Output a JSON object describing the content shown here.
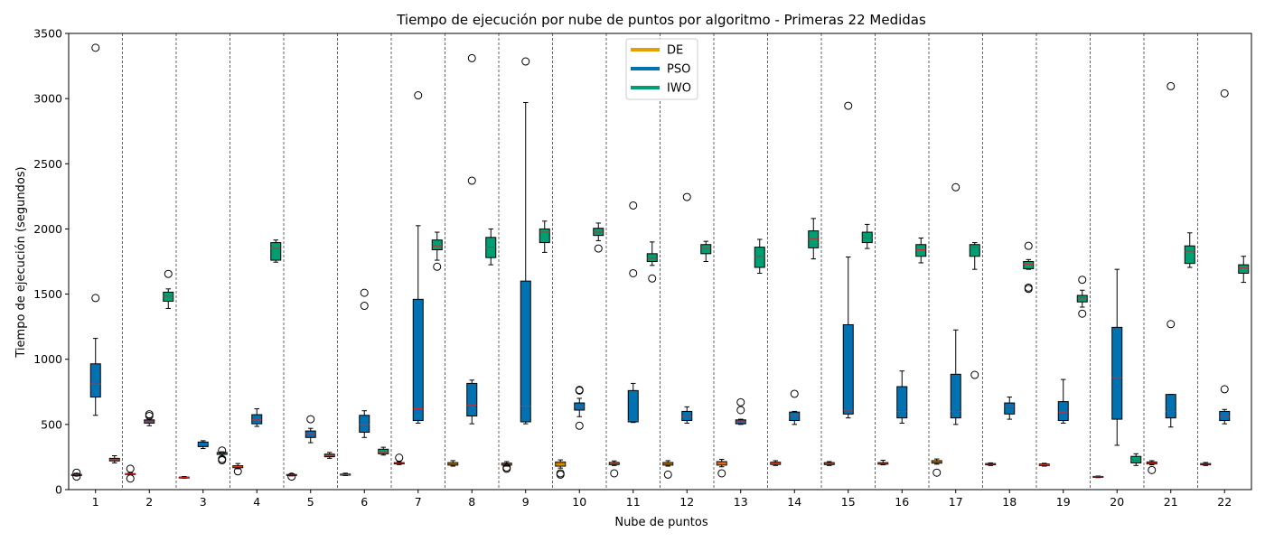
{
  "chart_data": {
    "type": "box",
    "title": "Tiempo de ejecución por nube de puntos por algoritmo - Primeras 22 Medidas",
    "xlabel": "Nube de puntos",
    "ylabel": "Tiempo de ejecución (segundos)",
    "ylim": [
      0,
      3500
    ],
    "yticks": [
      0,
      500,
      1000,
      1500,
      2000,
      2500,
      3000,
      3500
    ],
    "categories": [
      "1",
      "2",
      "3",
      "4",
      "5",
      "6",
      "7",
      "8",
      "9",
      "10",
      "11",
      "12",
      "13",
      "14",
      "15",
      "16",
      "17",
      "18",
      "19",
      "20",
      "21",
      "22"
    ],
    "legend_position": "top-center",
    "median_color": "#d62728",
    "separators": "dashed",
    "series": [
      {
        "name": "DE",
        "color": "#E69F00",
        "boxes": [
          {
            "whislo": 105,
            "q1": 108,
            "med": 113,
            "q3": 117,
            "whishi": 125,
            "fliers": [
              100,
              130
            ]
          },
          {
            "whislo": 115,
            "q1": 117,
            "med": 120,
            "q3": 123,
            "whishi": 127,
            "fliers": [
              160,
              85
            ]
          },
          {
            "whislo": 88,
            "q1": 90,
            "med": 93,
            "q3": 96,
            "whishi": 100,
            "fliers": []
          },
          {
            "whislo": 160,
            "q1": 168,
            "med": 175,
            "q3": 183,
            "whishi": 200,
            "fliers": [
              140
            ]
          },
          {
            "whislo": 105,
            "q1": 108,
            "med": 112,
            "q3": 116,
            "whishi": 120,
            "fliers": [
              100
            ]
          },
          {
            "whislo": 108,
            "q1": 111,
            "med": 115,
            "q3": 119,
            "whishi": 126,
            "fliers": []
          },
          {
            "whislo": 192,
            "q1": 197,
            "med": 202,
            "q3": 207,
            "whishi": 215,
            "fliers": [
              245
            ]
          },
          {
            "whislo": 180,
            "q1": 188,
            "med": 197,
            "q3": 207,
            "whishi": 222,
            "fliers": []
          },
          {
            "whislo": 180,
            "q1": 188,
            "med": 195,
            "q3": 203,
            "whishi": 215,
            "fliers": [
              160,
              170
            ]
          },
          {
            "whislo": 165,
            "q1": 180,
            "med": 198,
            "q3": 212,
            "whishi": 228,
            "fliers": [
              115,
              125
            ]
          },
          {
            "whislo": 185,
            "q1": 192,
            "med": 200,
            "q3": 208,
            "whishi": 220,
            "fliers": [
              125
            ]
          },
          {
            "whislo": 180,
            "q1": 188,
            "med": 198,
            "q3": 208,
            "whishi": 222,
            "fliers": [
              115
            ]
          },
          {
            "whislo": 175,
            "q1": 188,
            "med": 202,
            "q3": 215,
            "whishi": 232,
            "fliers": [
              125
            ]
          },
          {
            "whislo": 185,
            "q1": 193,
            "med": 202,
            "q3": 210,
            "whishi": 222,
            "fliers": []
          },
          {
            "whislo": 185,
            "q1": 192,
            "med": 200,
            "q3": 207,
            "whishi": 215,
            "fliers": []
          },
          {
            "whislo": 190,
            "q1": 195,
            "med": 200,
            "q3": 207,
            "whishi": 225,
            "fliers": []
          },
          {
            "whislo": 195,
            "q1": 203,
            "med": 212,
            "q3": 222,
            "whishi": 235,
            "fliers": [
              130
            ]
          },
          {
            "whislo": 185,
            "q1": 190,
            "med": 195,
            "q3": 200,
            "whishi": 205,
            "fliers": []
          },
          {
            "whislo": 180,
            "q1": 185,
            "med": 190,
            "q3": 196,
            "whishi": 202,
            "fliers": []
          },
          {
            "whislo": 92,
            "q1": 95,
            "med": 98,
            "q3": 101,
            "whishi": 104,
            "fliers": []
          },
          {
            "whislo": 190,
            "q1": 197,
            "med": 205,
            "q3": 212,
            "whishi": 222,
            "fliers": [
              150
            ]
          },
          {
            "whislo": 185,
            "q1": 190,
            "med": 195,
            "q3": 200,
            "whishi": 208,
            "fliers": []
          }
        ]
      },
      {
        "name": "PSO",
        "color": "#0072B2",
        "boxes": [
          {
            "whislo": 570,
            "q1": 710,
            "med": 810,
            "q3": 965,
            "whishi": 1160,
            "fliers": [
              1470,
              3390
            ]
          },
          {
            "whislo": 490,
            "q1": 510,
            "med": 520,
            "q3": 535,
            "whishi": 548,
            "fliers": [
              565,
              578
            ]
          },
          {
            "whislo": 315,
            "q1": 330,
            "med": 350,
            "q3": 365,
            "whishi": 375,
            "fliers": []
          },
          {
            "whislo": 485,
            "q1": 505,
            "med": 535,
            "q3": 575,
            "whishi": 620,
            "fliers": []
          },
          {
            "whislo": 360,
            "q1": 400,
            "med": 430,
            "q3": 450,
            "whishi": 470,
            "fliers": [
              540
            ]
          },
          {
            "whislo": 400,
            "q1": 440,
            "med": 500,
            "q3": 570,
            "whishi": 605,
            "fliers": [
              1410,
              1510
            ]
          },
          {
            "whislo": 510,
            "q1": 530,
            "med": 620,
            "q3": 1460,
            "whishi": 2025,
            "fliers": [
              3025
            ]
          },
          {
            "whislo": 505,
            "q1": 565,
            "med": 650,
            "q3": 815,
            "whishi": 840,
            "fliers": [
              2370,
              3310
            ]
          },
          {
            "whislo": 505,
            "q1": 520,
            "med": 640,
            "q3": 1600,
            "whishi": 2970,
            "fliers": [
              3285
            ]
          },
          {
            "whislo": 560,
            "q1": 610,
            "med": 640,
            "q3": 665,
            "whishi": 700,
            "fliers": [
              490,
              760,
              765
            ]
          },
          {
            "whislo": 515,
            "q1": 520,
            "med": 530,
            "q3": 760,
            "whishi": 815,
            "fliers": [
              1660,
              2180
            ]
          },
          {
            "whislo": 510,
            "q1": 530,
            "med": 560,
            "q3": 600,
            "whishi": 635,
            "fliers": [
              2245
            ]
          },
          {
            "whislo": 500,
            "q1": 505,
            "med": 520,
            "q3": 535,
            "whishi": 540,
            "fliers": [
              610,
              670
            ]
          },
          {
            "whislo": 500,
            "q1": 530,
            "med": 570,
            "q3": 595,
            "whishi": 600,
            "fliers": [
              735
            ]
          },
          {
            "whislo": 550,
            "q1": 580,
            "med": 610,
            "q3": 1265,
            "whishi": 1785,
            "fliers": [
              2945
            ]
          },
          {
            "whislo": 510,
            "q1": 550,
            "med": 600,
            "q3": 790,
            "whishi": 910,
            "fliers": []
          },
          {
            "whislo": 500,
            "q1": 550,
            "med": 600,
            "q3": 885,
            "whishi": 1225,
            "fliers": [
              2320
            ]
          },
          {
            "whislo": 540,
            "q1": 580,
            "med": 640,
            "q3": 665,
            "whishi": 710,
            "fliers": []
          },
          {
            "whislo": 510,
            "q1": 530,
            "med": 595,
            "q3": 675,
            "whishi": 845,
            "fliers": []
          },
          {
            "whislo": 340,
            "q1": 540,
            "med": 860,
            "q3": 1245,
            "whishi": 1690,
            "fliers": []
          },
          {
            "whislo": 480,
            "q1": 550,
            "med": 600,
            "q3": 730,
            "whishi": 730,
            "fliers": [
              1270,
              3095
            ]
          },
          {
            "whislo": 505,
            "q1": 530,
            "med": 560,
            "q3": 600,
            "whishi": 615,
            "fliers": [
              770,
              3040
            ]
          }
        ]
      },
      {
        "name": "IWO",
        "color": "#009E73",
        "boxes": [
          {
            "whislo": 205,
            "q1": 220,
            "med": 230,
            "q3": 240,
            "whishi": 260,
            "fliers": []
          },
          {
            "whislo": 1390,
            "q1": 1445,
            "med": 1485,
            "q3": 1515,
            "whishi": 1540,
            "fliers": [
              1655
            ]
          },
          {
            "whislo": 255,
            "q1": 270,
            "med": 280,
            "q3": 285,
            "whishi": 290,
            "fliers": [
              225,
              235,
              300
            ]
          },
          {
            "whislo": 1745,
            "q1": 1760,
            "med": 1850,
            "q3": 1895,
            "whishi": 1915,
            "fliers": []
          },
          {
            "whislo": 240,
            "q1": 252,
            "med": 262,
            "q3": 272,
            "whishi": 285,
            "fliers": []
          },
          {
            "whislo": 265,
            "q1": 275,
            "med": 290,
            "q3": 310,
            "whishi": 325,
            "fliers": []
          },
          {
            "whislo": 1760,
            "q1": 1840,
            "med": 1870,
            "q3": 1915,
            "whishi": 1975,
            "fliers": [
              1710
            ]
          },
          {
            "whislo": 1725,
            "q1": 1780,
            "med": 1860,
            "q3": 1935,
            "whishi": 2000,
            "fliers": []
          },
          {
            "whislo": 1820,
            "q1": 1895,
            "med": 1975,
            "q3": 2000,
            "whishi": 2060,
            "fliers": []
          },
          {
            "whislo": 1910,
            "q1": 1950,
            "med": 1975,
            "q3": 2005,
            "whishi": 2045,
            "fliers": [
              1850
            ]
          },
          {
            "whislo": 1720,
            "q1": 1750,
            "med": 1775,
            "q3": 1810,
            "whishi": 1900,
            "fliers": [
              1620
            ]
          },
          {
            "whislo": 1750,
            "q1": 1810,
            "med": 1850,
            "q3": 1880,
            "whishi": 1905,
            "fliers": []
          },
          {
            "whislo": 1660,
            "q1": 1705,
            "med": 1790,
            "q3": 1860,
            "whishi": 1920,
            "fliers": []
          },
          {
            "whislo": 1770,
            "q1": 1855,
            "med": 1925,
            "q3": 1985,
            "whishi": 2080,
            "fliers": []
          },
          {
            "whislo": 1850,
            "q1": 1895,
            "med": 1930,
            "q3": 1975,
            "whishi": 2035,
            "fliers": []
          },
          {
            "whislo": 1740,
            "q1": 1790,
            "med": 1840,
            "q3": 1880,
            "whishi": 1930,
            "fliers": []
          },
          {
            "whislo": 1690,
            "q1": 1790,
            "med": 1860,
            "q3": 1880,
            "whishi": 1895,
            "fliers": [
              880
            ]
          },
          {
            "whislo": 1690,
            "q1": 1695,
            "med": 1730,
            "q3": 1750,
            "whishi": 1765,
            "fliers": [
              1540,
              1550,
              1870
            ]
          },
          {
            "whislo": 1400,
            "q1": 1440,
            "med": 1470,
            "q3": 1490,
            "whishi": 1530,
            "fliers": [
              1350,
              1610
            ]
          },
          {
            "whislo": 185,
            "q1": 205,
            "med": 225,
            "q3": 255,
            "whishi": 275,
            "fliers": []
          },
          {
            "whislo": 1705,
            "q1": 1735,
            "med": 1830,
            "q3": 1870,
            "whishi": 1970,
            "fliers": []
          },
          {
            "whislo": 1590,
            "q1": 1660,
            "med": 1700,
            "q3": 1725,
            "whishi": 1790,
            "fliers": []
          }
        ]
      }
    ]
  }
}
